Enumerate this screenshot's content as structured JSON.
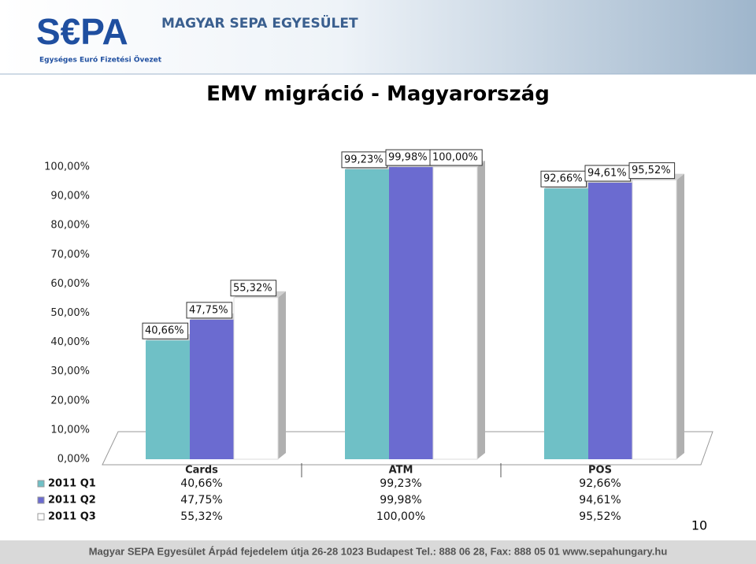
{
  "header": {
    "logo": "S€PA",
    "logo_subtitle": "Egységes Euró Fizetési Övezet",
    "organization": "MAGYAR SEPA EGYESÜLET"
  },
  "chart_data": {
    "type": "bar",
    "title": "EMV migráció - Magyarország",
    "categories": [
      "Cards",
      "ATM",
      "POS"
    ],
    "series": [
      {
        "name": "2011 Q1",
        "color": "#6fc0c6",
        "values": [
          40.66,
          99.23,
          92.66
        ],
        "value_labels": [
          "40,66%",
          "99,23%",
          "92,66%"
        ]
      },
      {
        "name": "2011 Q2",
        "color": "#6b6bd0",
        "values": [
          47.75,
          99.98,
          94.61
        ],
        "value_labels": [
          "47,75%",
          "99,98%",
          "94,61%"
        ]
      },
      {
        "name": "2011 Q3",
        "color": "#ffffff",
        "values": [
          55.32,
          100,
          95.52
        ],
        "value_labels": [
          "55,32%",
          "100,00%",
          "95,52%"
        ]
      }
    ],
    "ylim": [
      0,
      100
    ],
    "yticks": [
      {
        "value": 0,
        "label": "0,00%"
      },
      {
        "value": 10,
        "label": "10,00%"
      },
      {
        "value": 20,
        "label": "20,00%"
      },
      {
        "value": 30,
        "label": "30,00%"
      },
      {
        "value": 40,
        "label": "40,00%"
      },
      {
        "value": 50,
        "label": "50,00%"
      },
      {
        "value": 60,
        "label": "60,00%"
      },
      {
        "value": 70,
        "label": "70,00%"
      },
      {
        "value": 80,
        "label": "80,00%"
      },
      {
        "value": 90,
        "label": "90,00%"
      },
      {
        "value": 100,
        "label": "100,00%"
      }
    ]
  },
  "footer": "Magyar SEPA Egyesület Árpád fejedelem útja 26-28 1023 Budapest Tel.: 888 06 28, Fax: 888 05 01 www.sepahungary.hu",
  "page_number": "10"
}
